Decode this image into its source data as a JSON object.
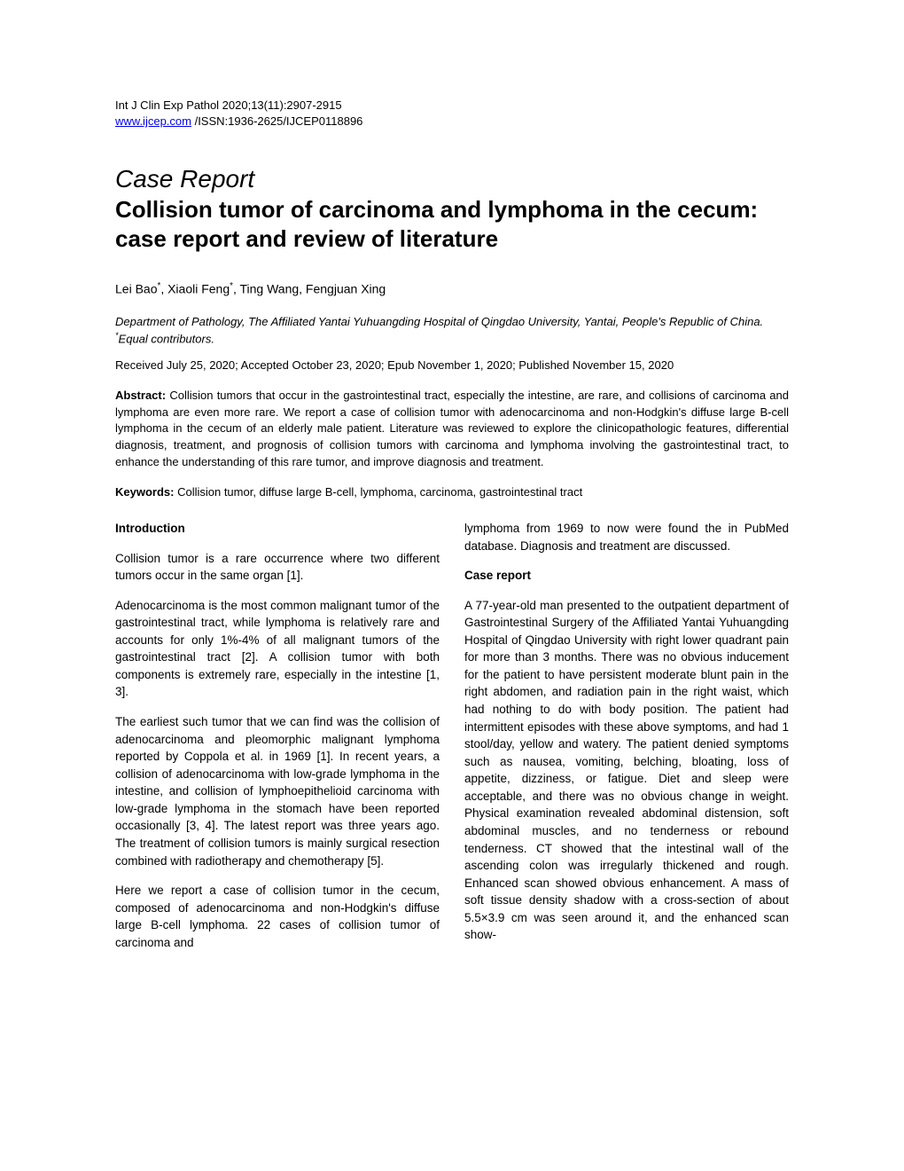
{
  "header": {
    "citation": "Int J Clin Exp Pathol 2020;13(11):2907-2915",
    "url": "www.ijcep.com",
    "issn": " /ISSN:1936-2625/IJCEP0118896"
  },
  "article": {
    "type": "Case Report",
    "title": "Collision tumor of carcinoma and lymphoma in the cecum: case report and review of literature",
    "authors_html": "Lei Bao<sup>*</sup>, Xiaoli Feng<sup>*</sup>, Ting Wang, Fengjuan Xing",
    "affiliation_html": "Department of Pathology, The Affiliated Yantai Yuhuangding Hospital of Qingdao University, Yantai, People's Republic of China. <sup>*</sup>Equal contributors.",
    "dates": "Received July 25, 2020; Accepted October 23, 2020; Epub November 1, 2020; Published November 15, 2020",
    "abstract_label": "Abstract:",
    "abstract_text": " Collision tumors that occur in the gastrointestinal tract, especially the intestine, are rare, and collisions of carcinoma and lymphoma are even more rare. We report a case of collision tumor with adenocarcinoma and non-Hodgkin's diffuse large B-cell lymphoma in the cecum of an elderly male patient. Literature was reviewed to explore the clinicopathologic features, differential diagnosis, treatment, and prognosis of collision tumors with carcinoma and lymphoma involving the gastrointestinal tract, to enhance the understanding of this rare tumor, and improve diagnosis and treatment.",
    "keywords_label": "Keywords:",
    "keywords_text": " Collision tumor, diffuse large B-cell, lymphoma, carcinoma, gastrointestinal tract"
  },
  "body": {
    "left": {
      "heading1": "Introduction",
      "p1": "Collision tumor is a rare occurrence where two different tumors occur in the same organ [1].",
      "p2": "Adenocarcinoma is the most common malignant tumor of the gastrointestinal tract, while lymphoma is relatively rare and accounts for only 1%-4% of all malignant tumors of the gastrointestinal tract [2]. A collision tumor with both components is extremely rare, especially in the intestine [1, 3].",
      "p3": "The earliest such tumor that we can find was the collision of adenocarcinoma and pleomorphic malignant lymphoma reported by Coppola et al. in 1969 [1]. In recent years, a collision of adenocarcinoma with low-grade lymphoma in the intestine, and collision of lymphoepithelioid carcinoma with low-grade lymphoma in the stomach have been reported occasionally [3, 4]. The latest report was three years ago. The treatment of collision tumors is mainly surgical resection combined with radiotherapy and chemotherapy [5].",
      "p4": "Here we report a case of collision tumor in the cecum, composed of adenocarcinoma and non-Hodgkin's diffuse large B-cell lymphoma. 22 cases of collision tumor of carcinoma and"
    },
    "right": {
      "p1": "lymphoma from 1969 to now were found the in PubMed database. Diagnosis and treatment are discussed.",
      "heading1": "Case report",
      "p2": "A 77-year-old man presented to the outpatient department of Gastrointestinal Surgery of the Affiliated Yantai Yuhuangding Hospital of Qingdao University with right lower quadrant pain for more than 3 months. There was no obvious inducement for the patient to have persistent moderate blunt pain in the right abdomen, and radiation pain in the right waist, which had nothing to do with body position. The patient had intermittent episodes with these above symptoms, and had 1 stool/day, yellow and watery. The patient denied symptoms such as nausea, vomiting, belching, bloating, loss of appetite, dizziness, or fatigue. Diet and sleep were acceptable, and there was no obvious change in weight. Physical examination revealed abdominal distension, soft abdominal muscles, and no tenderness or rebound tenderness. CT showed that the intestinal wall of the ascending colon was irregularly thickened and rough. Enhanced scan showed obvious enhancement. A mass of soft tissue density shadow with a cross-section of about 5.5×3.9 cm was seen around it, and the enhanced scan show-"
    }
  }
}
